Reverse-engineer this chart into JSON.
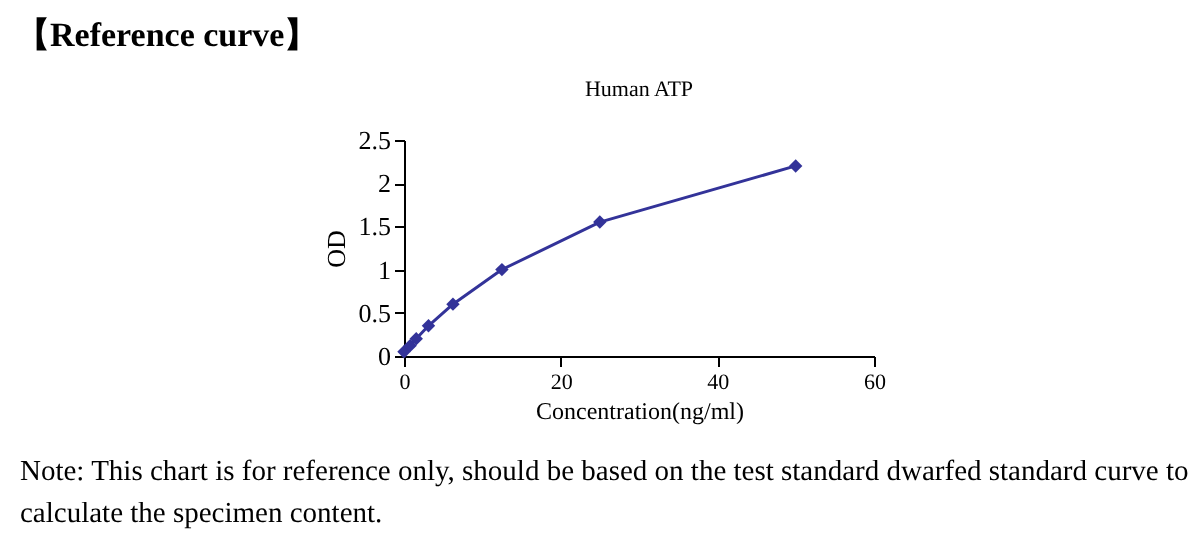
{
  "chart_data": {
    "type": "line",
    "title": "Human ATP",
    "xlabel": "Concentration(ng/ml)",
    "ylabel": "OD",
    "annotations": [
      "【Reference curve】",
      "Note: This chart is for reference only, should be based on the test standard dwarfed standard curve to calculate the specimen content."
    ],
    "x": [
      0,
      0.78,
      1.56,
      3.125,
      6.25,
      12.5,
      25,
      50
    ],
    "series": [
      {
        "color": "#333399",
        "values": [
          0.05,
          0.12,
          0.2,
          0.35,
          0.6,
          1.0,
          1.55,
          2.2
        ]
      }
    ],
    "xlim": [
      0,
      60
    ],
    "xticks": [
      0,
      20,
      40,
      60
    ],
    "ylim": [
      0,
      2.5
    ],
    "yticks": [
      0,
      0.5,
      1,
      1.5,
      2,
      2.5
    ],
    "marker": "diamond",
    "line_style": "solid",
    "grid": false,
    "legend": false
  }
}
